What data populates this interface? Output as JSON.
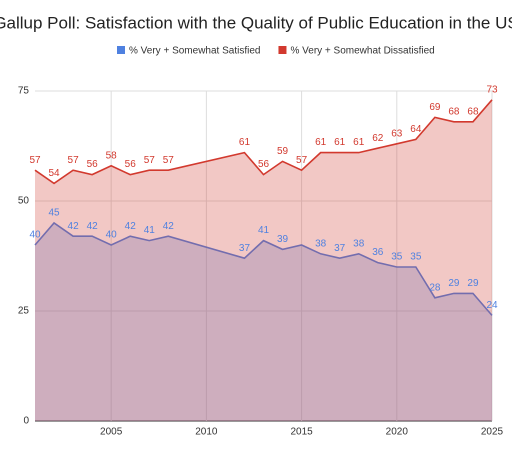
{
  "chart_data": {
    "type": "area",
    "title": "Gallup Poll: Satisfaction with the Quality of Public Education in the US",
    "x": [
      2001,
      2002,
      2003,
      2004,
      2005,
      2006,
      2007,
      2008,
      2012,
      2013,
      2014,
      2015,
      2016,
      2017,
      2018,
      2019,
      2020,
      2021,
      2022,
      2023,
      2024,
      2025
    ],
    "series": [
      {
        "name": "% Very + Somewhat Satisfied",
        "color": "#4f81e0",
        "values": [
          40,
          45,
          42,
          42,
          40,
          42,
          41,
          42,
          37,
          41,
          39,
          40,
          38,
          37,
          38,
          36,
          35,
          35,
          28,
          29,
          29,
          24
        ],
        "value_labels": [
          "40",
          "45",
          "42",
          "42",
          "40",
          "42",
          "41",
          "42",
          "37",
          "41",
          "39",
          null,
          "38",
          "37",
          "38",
          "36",
          "35",
          "35",
          "28",
          "29",
          "29",
          "24"
        ]
      },
      {
        "name": "% Very + Somewhat Dissatisfied",
        "color": "#d2392e",
        "values": [
          57,
          54,
          57,
          56,
          58,
          56,
          57,
          57,
          61,
          56,
          59,
          57,
          61,
          61,
          61,
          62,
          63,
          64,
          69,
          68,
          68,
          73
        ]
      }
    ],
    "xlim": [
      2001,
      2025
    ],
    "xticks": [
      2005,
      2010,
      2015,
      2020,
      2025
    ],
    "ylim": [
      0,
      75
    ],
    "yticks": [
      0,
      25,
      50,
      75
    ],
    "grid": true
  }
}
